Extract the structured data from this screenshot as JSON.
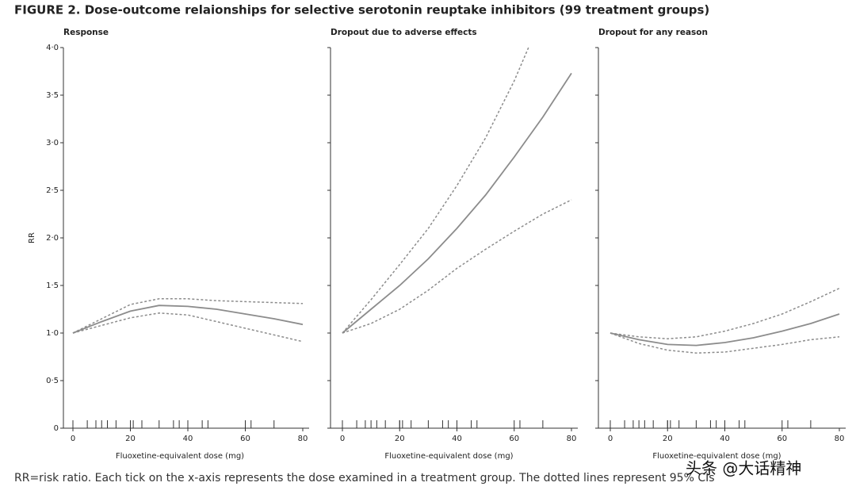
{
  "figure_title": "FIGURE 2. Dose-outcome relaionships for selective serotonin reuptake inhibitors (99 treatment groups)",
  "caption": "RR=risk ratio. Each tick on the x-axis represents the dose examined in a treatment group. The dotted lines represent 95% CIs",
  "watermark": "头条 @大话精神",
  "chart_data": [
    {
      "type": "line",
      "title": "Response",
      "x_label": "Fluoxetine-equivalent dose (mg)",
      "y_label": "RR",
      "x": [
        0,
        10,
        20,
        30,
        40,
        50,
        60,
        70,
        80
      ],
      "xlim": [
        0,
        80
      ],
      "xticks": [
        0,
        20,
        40,
        60,
        80
      ],
      "ylim": [
        0,
        4
      ],
      "yticks": [
        {
          "value": 0,
          "label": "0"
        },
        {
          "value": 0.5,
          "label": "0·5"
        },
        {
          "value": 1,
          "label": "1·0"
        },
        {
          "value": 1.5,
          "label": "1·5"
        },
        {
          "value": 2,
          "label": "2·0"
        },
        {
          "value": 2.5,
          "label": "2·5"
        },
        {
          "value": 3,
          "label": "3·0"
        },
        {
          "value": 3.5,
          "label": "3·5"
        },
        {
          "value": 4,
          "label": "4·0"
        }
      ],
      "rug": [
        0,
        5,
        8,
        10,
        12,
        15,
        20,
        20,
        21,
        24,
        30,
        35,
        37,
        40,
        45,
        47,
        60,
        62,
        70
      ],
      "series": [
        {
          "style": "solid",
          "color": "#8c8c8c",
          "values": [
            1.0,
            1.12,
            1.23,
            1.29,
            1.28,
            1.25,
            1.2,
            1.15,
            1.09
          ]
        },
        {
          "style": "dotted",
          "color": "#8c8c8c",
          "values": [
            1.0,
            1.15,
            1.3,
            1.36,
            1.36,
            1.34,
            1.33,
            1.32,
            1.31
          ]
        },
        {
          "style": "dotted",
          "color": "#8c8c8c",
          "values": [
            1.0,
            1.08,
            1.16,
            1.21,
            1.19,
            1.12,
            1.05,
            0.98,
            0.91
          ]
        }
      ]
    },
    {
      "type": "line",
      "title": "Dropout due to adverse effects",
      "x_label": "Fluoxetine-equivalent dose (mg)",
      "x": [
        0,
        10,
        20,
        30,
        40,
        50,
        60,
        70,
        80
      ],
      "xlim": [
        0,
        80
      ],
      "xticks": [
        0,
        20,
        40,
        60,
        80
      ],
      "ylim": [
        0,
        4
      ],
      "yticks": [
        0,
        0.5,
        1,
        1.5,
        2,
        2.5,
        3,
        3.5,
        4
      ],
      "rug": [
        0,
        5,
        8,
        10,
        12,
        15,
        20,
        20,
        21,
        24,
        30,
        35,
        37,
        40,
        45,
        47,
        60,
        62,
        70
      ],
      "series": [
        {
          "style": "solid",
          "color": "#8c8c8c",
          "values": [
            1.0,
            1.25,
            1.5,
            1.78,
            2.1,
            2.45,
            2.85,
            3.27,
            3.73
          ]
        },
        {
          "style": "dotted",
          "color": "#8c8c8c",
          "x": [
            0,
            10,
            20,
            30,
            40,
            50,
            60,
            65
          ],
          "values": [
            1.0,
            1.35,
            1.72,
            2.1,
            2.55,
            3.05,
            3.65,
            4.0
          ]
        },
        {
          "style": "dotted",
          "color": "#8c8c8c",
          "values": [
            1.0,
            1.1,
            1.25,
            1.45,
            1.68,
            1.88,
            2.07,
            2.25,
            2.4
          ]
        }
      ]
    },
    {
      "type": "line",
      "title": "Dropout for any reason",
      "x_label": "Fluoxetine-equivalent dose (mg)",
      "x": [
        0,
        10,
        20,
        30,
        40,
        50,
        60,
        70,
        80
      ],
      "xlim": [
        0,
        80
      ],
      "xticks": [
        0,
        20,
        40,
        60,
        80
      ],
      "ylim": [
        0,
        4
      ],
      "yticks": [
        0,
        0.5,
        1,
        1.5,
        2,
        2.5,
        3,
        3.5,
        4
      ],
      "rug": [
        0,
        5,
        8,
        10,
        12,
        15,
        20,
        20,
        21,
        24,
        30,
        35,
        37,
        40,
        45,
        47,
        60,
        62,
        70
      ],
      "series": [
        {
          "style": "solid",
          "color": "#8c8c8c",
          "values": [
            1.0,
            0.93,
            0.88,
            0.87,
            0.9,
            0.95,
            1.02,
            1.1,
            1.2
          ]
        },
        {
          "style": "dotted",
          "color": "#8c8c8c",
          "values": [
            1.0,
            0.96,
            0.94,
            0.96,
            1.02,
            1.1,
            1.2,
            1.33,
            1.47
          ]
        },
        {
          "style": "dotted",
          "color": "#8c8c8c",
          "values": [
            1.0,
            0.89,
            0.82,
            0.79,
            0.8,
            0.84,
            0.88,
            0.93,
            0.96
          ]
        }
      ]
    }
  ]
}
